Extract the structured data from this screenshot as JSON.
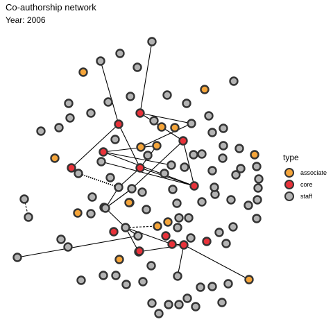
{
  "header": {
    "title": "Co-authorship network",
    "subtitle": "Year: 2006"
  },
  "legend": {
    "title": "type",
    "items": [
      {
        "label": "associate",
        "color": "#F5A53A"
      },
      {
        "label": "core",
        "color": "#E8323A"
      },
      {
        "label": "staff",
        "color": "#B3B3B3"
      }
    ]
  },
  "diagram": {
    "type_colors": {
      "associate": "#F5A53A",
      "core": "#E8323A",
      "staff": "#B3B3B3"
    },
    "nodes": [
      {
        "id": "n1",
        "type": "staff"
      },
      {
        "id": "n2",
        "type": "staff"
      },
      {
        "id": "n3",
        "type": "associate"
      },
      {
        "id": "n4",
        "type": "staff"
      },
      {
        "id": "n5",
        "type": "staff"
      },
      {
        "id": "n6",
        "type": "staff"
      },
      {
        "id": "n7",
        "type": "associate"
      },
      {
        "id": "n8",
        "type": "staff"
      },
      {
        "id": "n9",
        "type": "staff"
      },
      {
        "id": "n10",
        "type": "staff"
      },
      {
        "id": "n11",
        "type": "staff"
      },
      {
        "id": "n12",
        "type": "staff"
      },
      {
        "id": "n13",
        "type": "core"
      },
      {
        "id": "n14",
        "type": "staff"
      },
      {
        "id": "n15",
        "type": "core"
      },
      {
        "id": "n16",
        "type": "staff"
      },
      {
        "id": "n17",
        "type": "staff"
      },
      {
        "id": "n18",
        "type": "staff"
      },
      {
        "id": "n19",
        "type": "staff"
      },
      {
        "id": "n20",
        "type": "associate"
      },
      {
        "id": "n21",
        "type": "associate"
      },
      {
        "id": "n22",
        "type": "staff"
      },
      {
        "id": "n23",
        "type": "staff"
      },
      {
        "id": "n24",
        "type": "staff"
      },
      {
        "id": "n25",
        "type": "staff"
      },
      {
        "id": "n26",
        "type": "core"
      },
      {
        "id": "n27",
        "type": "associate"
      },
      {
        "id": "n28",
        "type": "associate"
      },
      {
        "id": "n29",
        "type": "core"
      },
      {
        "id": "n30",
        "type": "staff"
      },
      {
        "id": "n31",
        "type": "associate"
      },
      {
        "id": "n32",
        "type": "staff"
      },
      {
        "id": "n33",
        "type": "core"
      },
      {
        "id": "n34",
        "type": "staff"
      },
      {
        "id": "n35",
        "type": "staff"
      },
      {
        "id": "n36",
        "type": "staff"
      },
      {
        "id": "n37",
        "type": "staff"
      },
      {
        "id": "n38",
        "type": "staff"
      },
      {
        "id": "n39",
        "type": "core"
      },
      {
        "id": "n40",
        "type": "staff"
      },
      {
        "id": "n41",
        "type": "staff"
      },
      {
        "id": "n42",
        "type": "staff"
      },
      {
        "id": "n43",
        "type": "core"
      },
      {
        "id": "n44",
        "type": "staff"
      },
      {
        "id": "n45",
        "type": "staff"
      },
      {
        "id": "n46",
        "type": "staff"
      },
      {
        "id": "n47",
        "type": "staff"
      },
      {
        "id": "n48",
        "type": "staff"
      },
      {
        "id": "n49",
        "type": "associate"
      },
      {
        "id": "n50",
        "type": "staff"
      },
      {
        "id": "n51",
        "type": "associate"
      },
      {
        "id": "n52",
        "type": "staff"
      },
      {
        "id": "n53",
        "type": "staff"
      },
      {
        "id": "n54",
        "type": "staff"
      },
      {
        "id": "n55",
        "type": "staff"
      },
      {
        "id": "n56",
        "type": "staff"
      },
      {
        "id": "n57",
        "type": "staff"
      },
      {
        "id": "n58",
        "type": "staff"
      },
      {
        "id": "n59",
        "type": "associate"
      },
      {
        "id": "n60",
        "type": "staff"
      },
      {
        "id": "n61",
        "type": "staff"
      },
      {
        "id": "n62",
        "type": "staff"
      },
      {
        "id": "n63",
        "type": "associate"
      },
      {
        "id": "n64",
        "type": "staff"
      },
      {
        "id": "n65",
        "type": "core"
      },
      {
        "id": "n66",
        "type": "staff"
      },
      {
        "id": "n67",
        "type": "staff"
      },
      {
        "id": "n68",
        "type": "staff"
      },
      {
        "id": "n69",
        "type": "staff"
      },
      {
        "id": "n70",
        "type": "core"
      },
      {
        "id": "n71",
        "type": "core"
      },
      {
        "id": "n72",
        "type": "core"
      },
      {
        "id": "n73",
        "type": "core"
      },
      {
        "id": "n74",
        "type": "staff"
      },
      {
        "id": "n75",
        "type": "core"
      },
      {
        "id": "n76",
        "type": "staff"
      },
      {
        "id": "n77",
        "type": "staff"
      },
      {
        "id": "n78",
        "type": "associate"
      },
      {
        "id": "n79",
        "type": "staff"
      },
      {
        "id": "n80",
        "type": "staff"
      },
      {
        "id": "n81",
        "type": "staff"
      },
      {
        "id": "n82",
        "type": "associate"
      },
      {
        "id": "n83",
        "type": "staff"
      },
      {
        "id": "n84",
        "type": "staff"
      },
      {
        "id": "n85",
        "type": "staff"
      },
      {
        "id": "n86",
        "type": "core"
      },
      {
        "id": "n87",
        "type": "staff"
      },
      {
        "id": "n88",
        "type": "staff"
      },
      {
        "id": "n89",
        "type": "associate"
      },
      {
        "id": "n90",
        "type": "staff"
      },
      {
        "id": "n91",
        "type": "staff"
      },
      {
        "id": "n92",
        "type": "staff"
      },
      {
        "id": "n93",
        "type": "staff"
      },
      {
        "id": "n94",
        "type": "staff"
      },
      {
        "id": "n95",
        "type": "staff"
      },
      {
        "id": "n96",
        "type": "staff"
      },
      {
        "id": "n97",
        "type": "staff"
      },
      {
        "id": "n98",
        "type": "staff"
      },
      {
        "id": "n99",
        "type": "staff"
      },
      {
        "id": "n100",
        "type": "staff"
      },
      {
        "id": "n101",
        "type": "staff"
      },
      {
        "id": "n102",
        "type": "staff"
      },
      {
        "id": "n103",
        "type": "staff"
      },
      {
        "id": "n104",
        "type": "staff"
      },
      {
        "id": "n105",
        "type": "staff"
      }
    ],
    "edges": [
      {
        "from": "n2",
        "to": "n15"
      },
      {
        "from": "n1",
        "to": "n13"
      },
      {
        "from": "n13",
        "to": "n24"
      },
      {
        "from": "n13",
        "to": "n26"
      },
      {
        "from": "n24",
        "to": "n27"
      },
      {
        "from": "n27",
        "to": "n28"
      },
      {
        "from": "n28",
        "to": "n29"
      },
      {
        "from": "n28",
        "to": "n39"
      },
      {
        "from": "n29",
        "to": "n43"
      },
      {
        "from": "n26",
        "to": "n43"
      },
      {
        "from": "n26",
        "to": "n54"
      },
      {
        "from": "n39",
        "to": "n43"
      },
      {
        "from": "n32",
        "to": "n43"
      },
      {
        "from": "n29",
        "to": "n40"
      },
      {
        "from": "n15",
        "to": "n33"
      },
      {
        "from": "n15",
        "to": "n39"
      },
      {
        "from": "n33",
        "to": "n41",
        "style": "dotted"
      },
      {
        "from": "n41",
        "to": "n44",
        "style": "dotted"
      },
      {
        "from": "n39",
        "to": "n44"
      },
      {
        "from": "n44",
        "to": "n57"
      },
      {
        "from": "n54",
        "to": "n57"
      },
      {
        "from": "n57",
        "to": "n79"
      },
      {
        "from": "n79",
        "to": "n63",
        "style": "dashed"
      },
      {
        "from": "n79",
        "to": "n81"
      },
      {
        "from": "n79",
        "to": "n70"
      },
      {
        "from": "n79",
        "to": "n75"
      },
      {
        "from": "n70",
        "to": "n86"
      },
      {
        "from": "n86",
        "to": "n89"
      },
      {
        "from": "n75",
        "to": "n86"
      },
      {
        "from": "n81",
        "to": "n85"
      },
      {
        "from": "n86",
        "to": "n98"
      },
      {
        "from": "n50",
        "to": "n66",
        "style": "dashed"
      }
    ]
  }
}
